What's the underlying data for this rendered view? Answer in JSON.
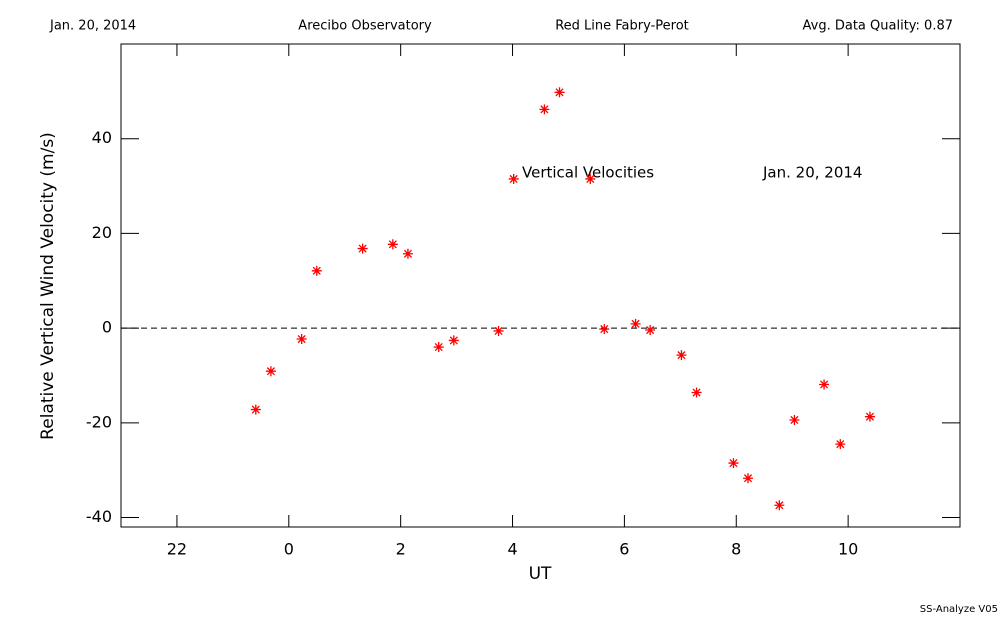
{
  "header": {
    "date": "Jan. 20, 2014",
    "site": "Arecibo Observatory",
    "instrument": "Red Line Fabry-Perot",
    "quality": "Avg. Data Quality: 0.87"
  },
  "footer": "SS-Analyze V05",
  "chart_data": {
    "type": "scatter",
    "x_label": "UT",
    "y_label": "Relative Vertical Wind Velocity (m/s)",
    "annotations": [
      "Vertical Velocities",
      "Jan. 20, 2014"
    ],
    "color": "#ff0000",
    "reference_line": 0,
    "xlim": [
      -3,
      12
    ],
    "xticks": [
      {
        "value": -2,
        "label": "22"
      },
      0,
      2,
      4,
      6,
      8,
      10
    ],
    "ylim": [
      -42,
      60
    ],
    "yticks": [
      -40,
      -20,
      0,
      20,
      40
    ],
    "x": [
      -0.59,
      -0.32,
      0.23,
      0.5,
      1.32,
      1.86,
      2.13,
      2.68,
      2.95,
      3.75,
      4.02,
      4.57,
      4.84,
      5.39,
      5.64,
      6.2,
      6.46,
      7.02,
      7.29,
      7.95,
      8.21,
      8.77,
      9.04,
      9.57,
      9.86,
      10.39
    ],
    "values": [
      -17.2,
      -9.1,
      -2.3,
      12.1,
      16.8,
      17.7,
      15.7,
      -4.0,
      -2.6,
      -0.6,
      31.5,
      46.2,
      49.8,
      31.5,
      -0.2,
      0.9,
      -0.4,
      -5.7,
      -13.6,
      -28.5,
      -31.7,
      -37.4,
      -19.4,
      -11.9,
      -24.5,
      -18.7
    ]
  }
}
